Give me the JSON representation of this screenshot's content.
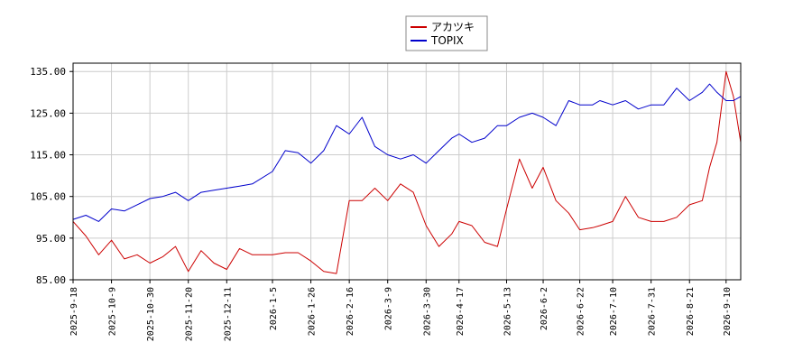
{
  "chart_data": {
    "type": "line",
    "title": "",
    "xlabel": "",
    "ylabel": "",
    "ylim": [
      85,
      137
    ],
    "y_ticks": [
      "85.00",
      "95.00",
      "105.00",
      "115.00",
      "125.00",
      "135.00"
    ],
    "y_tick_values": [
      85,
      95,
      105,
      115,
      125,
      135
    ],
    "x_ticks": [
      "2025-9-18",
      "2025-10-9",
      "2025-10-30",
      "2025-11-20",
      "2025-12-11",
      "2026-1-5",
      "2026-1-26",
      "2026-2-16",
      "2026-3-9",
      "2026-3-30",
      "2026-4-17",
      "2026-5-13",
      "2026-6-2",
      "2026-6-22",
      "2026-7-10",
      "2026-7-31",
      "2026-8-21",
      "2026-9-10"
    ],
    "grid": true,
    "legend_position": "top-center",
    "x_range": [
      "2025-9-18",
      "2026-9-18"
    ],
    "series": [
      {
        "name": "アカツキ",
        "color": "#cc0000",
        "x": [
          "2025-9-18",
          "2025-9-25",
          "2025-10-2",
          "2025-10-9",
          "2025-10-16",
          "2025-10-23",
          "2025-10-30",
          "2025-11-6",
          "2025-11-13",
          "2025-11-20",
          "2025-11-27",
          "2025-12-4",
          "2025-12-11",
          "2025-12-18",
          "2025-12-25",
          "2026-1-5",
          "2026-1-12",
          "2026-1-19",
          "2026-1-26",
          "2026-2-2",
          "2026-2-9",
          "2026-2-16",
          "2026-2-23",
          "2026-3-2",
          "2026-3-9",
          "2026-3-16",
          "2026-3-23",
          "2026-3-30",
          "2026-4-6",
          "2026-4-13",
          "2026-4-17",
          "2026-4-24",
          "2026-5-1",
          "2026-5-8",
          "2026-5-13",
          "2026-5-20",
          "2026-5-27",
          "2026-6-2",
          "2026-6-9",
          "2026-6-16",
          "2026-6-22",
          "2026-6-29",
          "2026-7-3",
          "2026-7-10",
          "2026-7-17",
          "2026-7-24",
          "2026-7-31",
          "2026-8-7",
          "2026-8-14",
          "2026-8-21",
          "2026-8-28",
          "2026-9-1",
          "2026-9-5",
          "2026-9-10",
          "2026-9-14",
          "2026-9-18"
        ],
        "values": [
          99,
          95.5,
          91,
          94.5,
          90,
          91,
          89,
          90.5,
          93,
          87,
          92,
          89,
          87.5,
          92.5,
          91,
          91,
          91.5,
          91.5,
          89.5,
          87,
          86.5,
          104,
          104,
          107,
          104,
          108,
          106,
          98,
          93,
          96,
          99,
          98,
          94,
          93,
          102,
          114,
          107,
          112,
          104,
          101,
          97,
          97.5,
          98,
          99,
          105,
          100,
          99,
          99,
          100,
          103,
          104,
          112,
          118,
          135,
          129,
          118
        ]
      },
      {
        "name": "TOPIX",
        "color": "#0000cc",
        "x": [
          "2025-9-18",
          "2025-9-25",
          "2025-10-2",
          "2025-10-9",
          "2025-10-16",
          "2025-10-23",
          "2025-10-30",
          "2025-11-6",
          "2025-11-13",
          "2025-11-20",
          "2025-11-27",
          "2025-12-4",
          "2025-12-11",
          "2025-12-18",
          "2025-12-25",
          "2026-1-5",
          "2026-1-12",
          "2026-1-19",
          "2026-1-26",
          "2026-2-2",
          "2026-2-9",
          "2026-2-16",
          "2026-2-23",
          "2026-3-2",
          "2026-3-9",
          "2026-3-16",
          "2026-3-23",
          "2026-3-30",
          "2026-4-6",
          "2026-4-13",
          "2026-4-17",
          "2026-4-24",
          "2026-5-1",
          "2026-5-8",
          "2026-5-13",
          "2026-5-20",
          "2026-5-27",
          "2026-6-2",
          "2026-6-9",
          "2026-6-16",
          "2026-6-22",
          "2026-6-29",
          "2026-7-3",
          "2026-7-10",
          "2026-7-17",
          "2026-7-24",
          "2026-7-31",
          "2026-8-7",
          "2026-8-14",
          "2026-8-21",
          "2026-8-28",
          "2026-9-1",
          "2026-9-5",
          "2026-9-10",
          "2026-9-14",
          "2026-9-18"
        ],
        "values": [
          99.5,
          100.5,
          99,
          102,
          101.5,
          103,
          104.5,
          105,
          106,
          104,
          106,
          106.5,
          107,
          107.5,
          108,
          111,
          116,
          115.5,
          113,
          116,
          122,
          120,
          124,
          117,
          115,
          114,
          115,
          113,
          116,
          119,
          120,
          118,
          119,
          122,
          122,
          124,
          125,
          124,
          122,
          128,
          127,
          127,
          128,
          127,
          128,
          126,
          127,
          127,
          131,
          128,
          130,
          132,
          130,
          128,
          128,
          129
        ]
      }
    ]
  }
}
